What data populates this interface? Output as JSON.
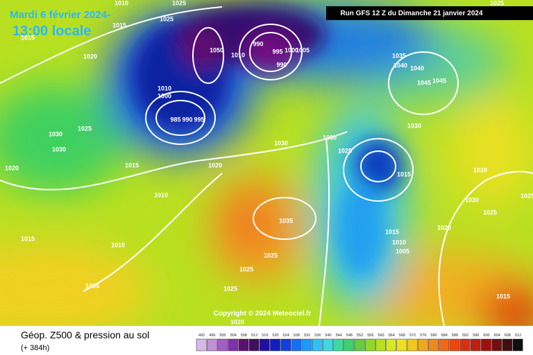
{
  "header": {
    "date": "Mardi 6 février 2024-",
    "time": "13:00 locale",
    "run": "Run GFS 12 Z du Dimanche 21 janvier 2024"
  },
  "copyright": "Copyright © 2024 Meteociel.fr",
  "footer": {
    "title": "Géop. Z500 & pression au sol",
    "lead": "(+ 384h)"
  },
  "legend": {
    "labels": [
      "492",
      "496",
      "500",
      "504",
      "508",
      "512",
      "516",
      "520",
      "524",
      "528",
      "532",
      "536",
      "540",
      "544",
      "548",
      "552",
      "556",
      "560",
      "564",
      "568",
      "572",
      "576",
      "580",
      "584",
      "588",
      "592",
      "596",
      "600",
      "604",
      "608",
      "612"
    ]
  },
  "isobars": [
    "1010",
    "1025",
    "1025",
    "1015",
    "1015",
    "1020",
    "1050",
    "1010",
    "990",
    "995",
    "1000",
    "1005",
    "990",
    "1010",
    "1000",
    "985",
    "990",
    "995",
    "1025",
    "1030",
    "1030",
    "1020",
    "1015",
    "1020",
    "1030",
    "1030",
    "1025",
    "1035",
    "1040",
    "1040",
    "1045",
    "1045",
    "1030",
    "1015",
    "1020",
    "1030",
    "1025",
    "1020",
    "1025",
    "1010",
    "1015",
    "1010",
    "1035",
    "1025",
    "1025",
    "1025",
    "1005",
    "1015",
    "1010",
    "1005",
    "1015",
    "1020",
    "1025"
  ]
}
